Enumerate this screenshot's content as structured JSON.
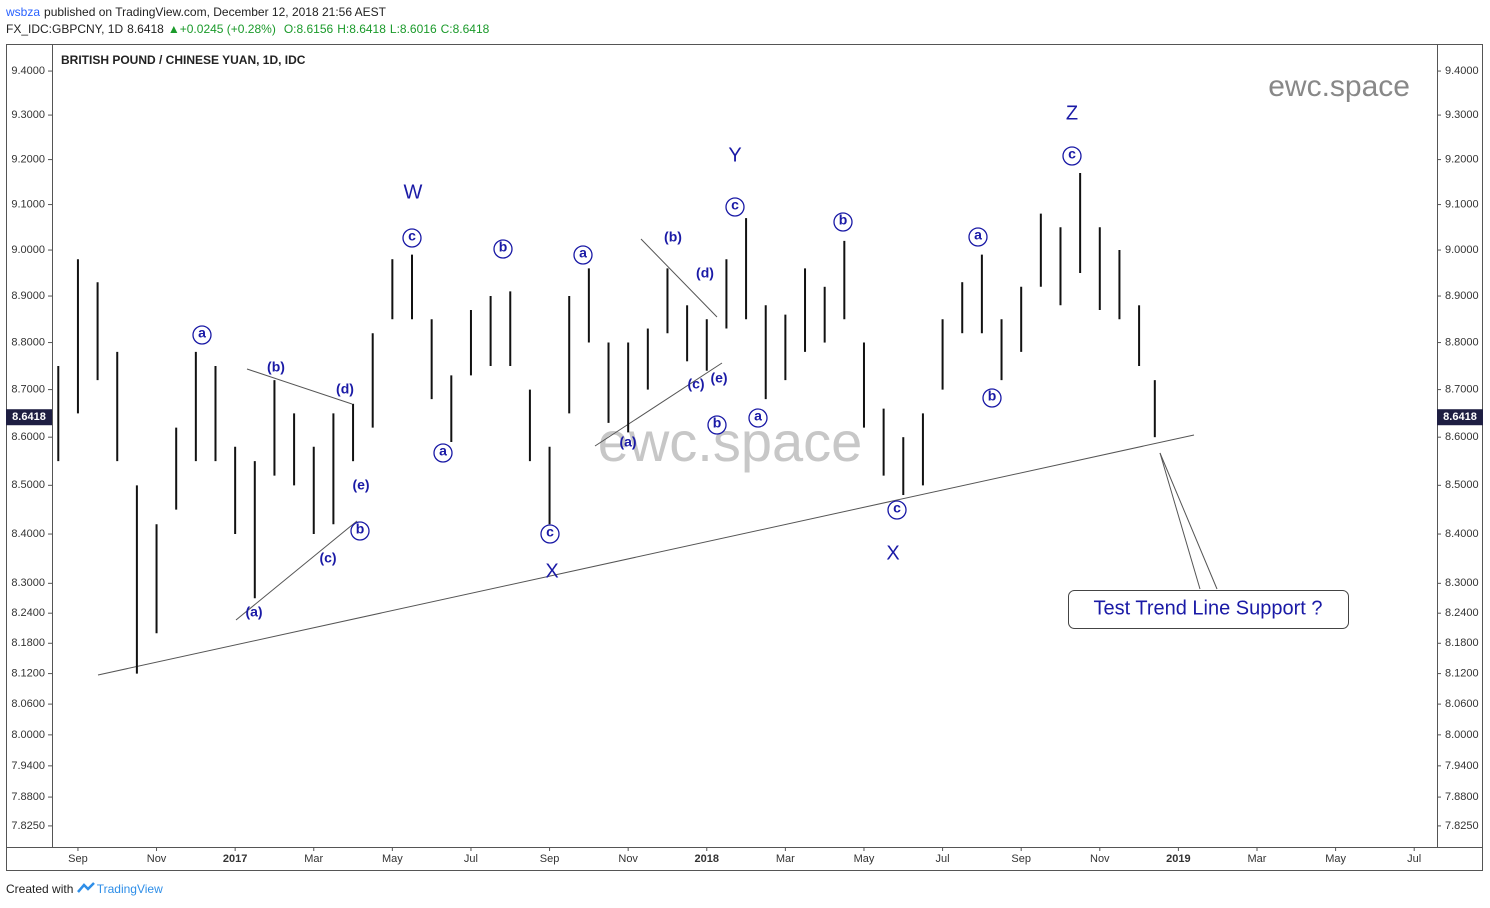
{
  "header": {
    "user": "wsbza",
    "published": "published on TradingView.com, December 12, 2018 21:56 AEST",
    "symbol": "FX_IDC:GBPCNY, 1D",
    "last": "8.6418",
    "change": "+0.0245 (+0.28%)",
    "ohlc": [
      "O:8.6156",
      "H:8.6418",
      "L:8.6016",
      "C:8.6418"
    ]
  },
  "footer": {
    "created": "Created with",
    "brand": "TradingView"
  },
  "chart_data": {
    "type": "bar-range",
    "title": "BRITISH POUND / CHINESE YUAN, 1D, IDC",
    "watermarks": [
      "ewc.space",
      "ewc.space"
    ],
    "callout": "Test Trend Line Support ?",
    "wave_labels": [
      "W",
      "X",
      "Y",
      "X",
      "Z",
      "a",
      "b",
      "c",
      "a",
      "b",
      "a",
      "c",
      "b",
      "c",
      "a",
      "b",
      "c",
      "a",
      "b",
      "c",
      "(a)",
      "(b)",
      "(c)",
      "(d)",
      "(e)",
      "(a)",
      "(b)",
      "(c)",
      "(d)",
      "(e)"
    ],
    "last_price": {
      "value": 8.6418,
      "label": "8.6418"
    },
    "log_scale": true,
    "color": "#111111",
    "x": [
      -0.5,
      0,
      0.5,
      1,
      1.5,
      2,
      2.5,
      3,
      3.5,
      4,
      4.5,
      5,
      5.5,
      6,
      6.5,
      7,
      7.5,
      8,
      8.5,
      9,
      9.5,
      10,
      10.5,
      11,
      11.5,
      12,
      12.5,
      13,
      13.5,
      14,
      14.5,
      15,
      15.5,
      16,
      16.5,
      17,
      17.5,
      18,
      18.5,
      19,
      19.5,
      20,
      20.5,
      21,
      21.5,
      22,
      22.5,
      23,
      23.5,
      24,
      24.5,
      25,
      25.5,
      26,
      26.5,
      27,
      27.4
    ],
    "low": [
      8.55,
      8.65,
      8.72,
      8.55,
      8.12,
      8.2,
      8.45,
      8.55,
      8.55,
      8.4,
      8.27,
      8.52,
      8.5,
      8.4,
      8.42,
      8.55,
      8.62,
      8.85,
      8.85,
      8.68,
      8.59,
      8.73,
      8.75,
      8.75,
      8.55,
      8.42,
      8.65,
      8.8,
      8.63,
      8.61,
      8.7,
      8.82,
      8.76,
      8.74,
      8.83,
      8.85,
      8.68,
      8.72,
      8.78,
      8.8,
      8.85,
      8.62,
      8.52,
      8.48,
      8.5,
      8.7,
      8.82,
      8.82,
      8.72,
      8.78,
      8.92,
      8.88,
      8.95,
      8.87,
      8.85,
      8.75,
      8.6
    ],
    "high": [
      8.75,
      8.98,
      8.93,
      8.78,
      8.5,
      8.42,
      8.62,
      8.78,
      8.75,
      8.58,
      8.55,
      8.72,
      8.65,
      8.58,
      8.65,
      8.67,
      8.82,
      8.98,
      8.99,
      8.85,
      8.73,
      8.87,
      8.9,
      8.91,
      8.7,
      8.58,
      8.9,
      8.96,
      8.8,
      8.8,
      8.83,
      8.96,
      8.88,
      8.85,
      8.98,
      9.07,
      8.88,
      8.86,
      8.96,
      8.92,
      9.02,
      8.8,
      8.66,
      8.6,
      8.65,
      8.85,
      8.93,
      8.99,
      8.85,
      8.92,
      9.08,
      9.05,
      9.17,
      9.05,
      9.0,
      8.88,
      8.72
    ],
    "xlim": [
      -0.66,
      34.58
    ],
    "xticks": [
      {
        "value": 0,
        "label": "Sep"
      },
      {
        "value": 2,
        "label": "Nov"
      },
      {
        "value": 4,
        "label": "2017"
      },
      {
        "value": 6,
        "label": "Mar"
      },
      {
        "value": 8,
        "label": "May"
      },
      {
        "value": 10,
        "label": "Jul"
      },
      {
        "value": 12,
        "label": "Sep"
      },
      {
        "value": 14,
        "label": "Nov"
      },
      {
        "value": 16,
        "label": "2018"
      },
      {
        "value": 18,
        "label": "Mar"
      },
      {
        "value": 20,
        "label": "May"
      },
      {
        "value": 22,
        "label": "Jul"
      },
      {
        "value": 24,
        "label": "Sep"
      },
      {
        "value": 26,
        "label": "Nov"
      },
      {
        "value": 28,
        "label": "2019"
      },
      {
        "value": 30,
        "label": "Mar"
      },
      {
        "value": 32,
        "label": "May"
      },
      {
        "value": 34,
        "label": "Jul"
      }
    ],
    "ylim": [
      7.785,
      9.462
    ],
    "yticks": [
      {
        "value": 9.4,
        "label": "9.4000"
      },
      {
        "value": 9.3,
        "label": "9.3000"
      },
      {
        "value": 9.2,
        "label": "9.2000"
      },
      {
        "value": 9.1,
        "label": "9.1000"
      },
      {
        "value": 9.0,
        "label": "9.0000"
      },
      {
        "value": 8.9,
        "label": "8.9000"
      },
      {
        "value": 8.8,
        "label": "8.8000"
      },
      {
        "value": 8.7,
        "label": "8.7000"
      },
      {
        "value": 8.6,
        "label": "8.6000"
      },
      {
        "value": 8.5,
        "label": "8.5000"
      },
      {
        "value": 8.4,
        "label": "8.4000"
      },
      {
        "value": 8.3,
        "label": "8.3000"
      },
      {
        "value": 8.24,
        "label": "8.2400"
      },
      {
        "value": 8.18,
        "label": "8.1800"
      },
      {
        "value": 8.12,
        "label": "8.1200"
      },
      {
        "value": 8.06,
        "label": "8.0600"
      },
      {
        "value": 8.0,
        "label": "8.0000"
      },
      {
        "value": 7.94,
        "label": "7.9400"
      },
      {
        "value": 7.88,
        "label": "7.8800"
      },
      {
        "value": 7.825,
        "label": "7.8250"
      }
    ]
  }
}
